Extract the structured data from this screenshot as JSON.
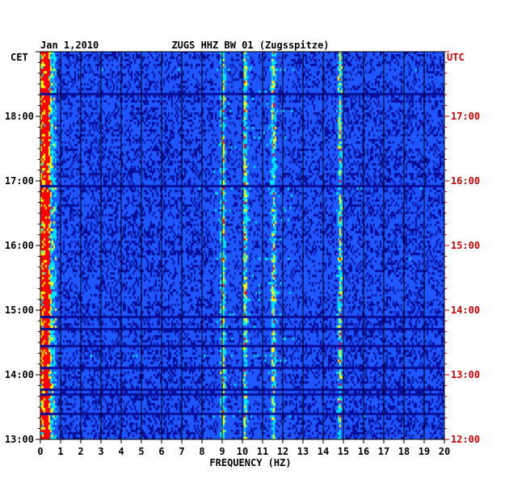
{
  "chart_data": {
    "type": "heatmap",
    "date": "Jan 1,2010",
    "title": "ZUGS HHZ BW 01 (Zugsspitze)",
    "xlabel": "FREQUENCY (HZ)",
    "xlim": [
      0,
      20
    ],
    "x_ticks": [
      "0",
      "1",
      "2",
      "3",
      "4",
      "5",
      "6",
      "7",
      "8",
      "9",
      "10",
      "11",
      "12",
      "13",
      "14",
      "15",
      "16",
      "17",
      "18",
      "19",
      "20"
    ],
    "left_axis": {
      "label": "CET",
      "range": [
        "13:00",
        "19:00"
      ],
      "ticks": [
        "18:00",
        "17:00",
        "16:00",
        "15:00",
        "14:00",
        "13:00"
      ]
    },
    "right_axis": {
      "label": "UTC",
      "range": [
        "12:00",
        "18:00"
      ],
      "ticks": [
        "17:00",
        "16:00",
        "15:00",
        "14:00",
        "13:00",
        "12:00"
      ]
    },
    "grid": true,
    "strong_frequency_bands_hz": [
      0.3,
      9.0,
      10.1,
      11.5,
      14.8
    ],
    "dark_gap_times_cet": [
      "13:25",
      "13:42",
      "13:48",
      "14:08",
      "14:28",
      "14:43",
      "14:55",
      "16:57",
      "18:21"
    ],
    "colors": {
      "background": "#0a0f9a",
      "mid": "#1e56ff",
      "hot": "#00e5ff",
      "peak": "#ffff00",
      "max": "#ff0000",
      "left_axis_text": "#000000",
      "right_axis_text": "#d00000"
    }
  }
}
